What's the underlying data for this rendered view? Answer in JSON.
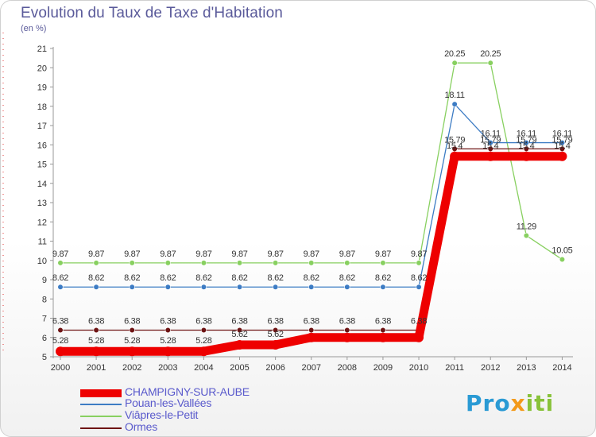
{
  "title": "Evolution du Taux de Taxe d'Habitation",
  "unit": "(en %)",
  "logo": {
    "parts": [
      "Pro",
      "x",
      "iti"
    ],
    "colors": [
      "#2a9ad4",
      "#f39a1a",
      "#88c23a"
    ]
  },
  "chart_data": {
    "type": "line",
    "title": "Evolution du Taux de Taxe d'Habitation",
    "ylabel": "(en %)",
    "xlabel": "",
    "ylim": [
      5,
      21
    ],
    "yticks": [
      5,
      6,
      7,
      8,
      9,
      10,
      11,
      12,
      13,
      14,
      15,
      16,
      17,
      18,
      19,
      20,
      21
    ],
    "x": [
      "2000",
      "2001",
      "2002",
      "2003",
      "2004",
      "2005",
      "2006",
      "2007",
      "2008",
      "2009",
      "2010",
      "2011",
      "2012",
      "2013",
      "2014"
    ],
    "legend_position": "bottom-left",
    "series": [
      {
        "name": "CHAMPIGNY-SUR-AUBE",
        "color": "#ee0000",
        "values": [
          5.28,
          5.28,
          5.28,
          5.28,
          5.28,
          5.62,
          5.62,
          6.0,
          6.0,
          6.0,
          6.0,
          15.4,
          15.4,
          15.4,
          15.4
        ],
        "labels": [
          "5.28",
          "5.28",
          "5.28",
          "5.28",
          "5.28",
          "5.62",
          "5.62",
          "",
          "",
          "",
          "",
          "15.4",
          "15.4",
          "15.4",
          "15.4"
        ]
      },
      {
        "name": "Pouan-les-Vallées",
        "color": "#3d7cc4",
        "values": [
          8.62,
          8.62,
          8.62,
          8.62,
          8.62,
          8.62,
          8.62,
          8.62,
          8.62,
          8.62,
          8.62,
          18.11,
          16.11,
          16.11,
          16.11
        ],
        "labels": [
          "8.62",
          "8.62",
          "8.62",
          "8.62",
          "8.62",
          "8.62",
          "8.62",
          "8.62",
          "8.62",
          "8.62",
          "8.62",
          "18.11",
          "16.11",
          "16.11",
          "16.11"
        ]
      },
      {
        "name": "Viâpres-le-Petit",
        "color": "#88d060",
        "values": [
          9.87,
          9.87,
          9.87,
          9.87,
          9.87,
          9.87,
          9.87,
          9.87,
          9.87,
          9.87,
          9.87,
          20.25,
          20.25,
          11.29,
          10.05
        ],
        "labels": [
          "9.87",
          "9.87",
          "9.87",
          "9.87",
          "9.87",
          "9.87",
          "9.87",
          "9.87",
          "9.87",
          "9.87",
          "9.87",
          "20.25",
          "20.25",
          "11.29",
          "10.05"
        ]
      },
      {
        "name": "Ormes",
        "color": "#6e1414",
        "values": [
          6.38,
          6.38,
          6.38,
          6.38,
          6.38,
          6.38,
          6.38,
          6.38,
          6.38,
          6.38,
          6.38,
          15.79,
          15.79,
          15.79,
          15.79
        ],
        "labels": [
          "6.38",
          "6.38",
          "6.38",
          "6.38",
          "6.38",
          "6.38",
          "6.38",
          "6.38",
          "6.38",
          "6.38",
          "6.38",
          "15.79",
          "15.79",
          "15.79",
          "15.79"
        ]
      }
    ]
  }
}
